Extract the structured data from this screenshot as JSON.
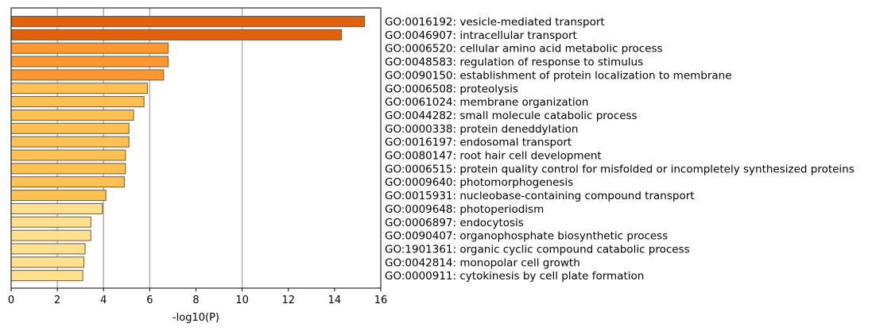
{
  "chart_data": {
    "type": "bar",
    "orientation": "horizontal",
    "xlabel": "-log10(P)",
    "xlim": [
      0,
      16
    ],
    "xticks": [
      0,
      2,
      4,
      6,
      8,
      10,
      12,
      14,
      16
    ],
    "grid_x": [
      2,
      4,
      6,
      10
    ],
    "categories": [
      "GO:0016192: vesicle-mediated transport",
      "GO:0046907: intracellular transport",
      "GO:0006520: cellular amino acid metabolic process",
      "GO:0048583: regulation of response to stimulus",
      "GO:0090150: establishment of protein localization to membrane",
      "GO:0006508: proteolysis",
      "GO:0061024: membrane organization",
      "GO:0044282: small molecule catabolic process",
      "GO:0000338: protein deneddylation",
      "GO:0016197: endosomal transport",
      "GO:0080147: root hair cell development",
      "GO:0006515: protein quality control for misfolded or incompletely synthesized proteins",
      "GO:0009640: photomorphogenesis",
      "GO:0015931: nucleobase-containing compound transport",
      "GO:0009648: photoperiodism",
      "GO:0006897: endocytosis",
      "GO:0090407: organophosphate biosynthetic process",
      "GO:1901361: organic cyclic compound catabolic process",
      "GO:0042814: monopolar cell growth",
      "GO:0000911: cytokinesis by cell plate formation"
    ],
    "values": [
      15.3,
      14.3,
      6.8,
      6.8,
      6.6,
      5.9,
      5.75,
      5.3,
      5.1,
      5.1,
      4.95,
      4.95,
      4.9,
      4.1,
      3.95,
      3.45,
      3.45,
      3.2,
      3.15,
      3.1
    ],
    "bar_colors": [
      "#e0610e",
      "#e0610e",
      "#fd9730",
      "#fd9730",
      "#fd9730",
      "#fec050",
      "#fec050",
      "#fec050",
      "#fec050",
      "#fec050",
      "#fec050",
      "#fec050",
      "#fec050",
      "#fec050",
      "#fee08e",
      "#fee08e",
      "#fee08e",
      "#fee08e",
      "#fee08e",
      "#fee08e"
    ],
    "bar_edge_color": "#6b5a45",
    "grid_color": "#b0b0b0"
  }
}
